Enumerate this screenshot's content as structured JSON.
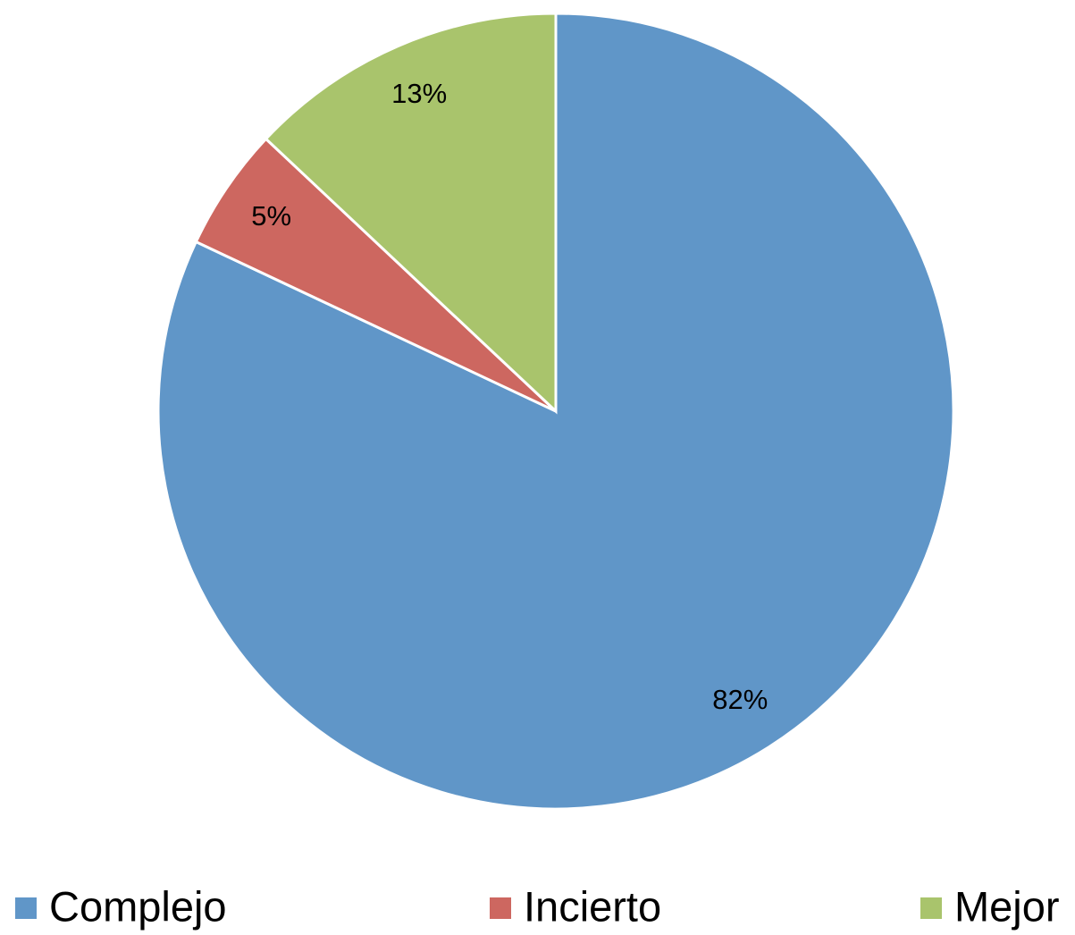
{
  "chart_data": {
    "type": "pie",
    "categories": [
      "Complejo",
      "Incierto",
      "Mejor"
    ],
    "values": [
      82,
      5,
      13
    ],
    "value_labels": [
      "82%",
      "5%",
      "13%"
    ],
    "colors": [
      "#6096c8",
      "#cd6760",
      "#a9c46c"
    ],
    "legend": "bottom"
  }
}
